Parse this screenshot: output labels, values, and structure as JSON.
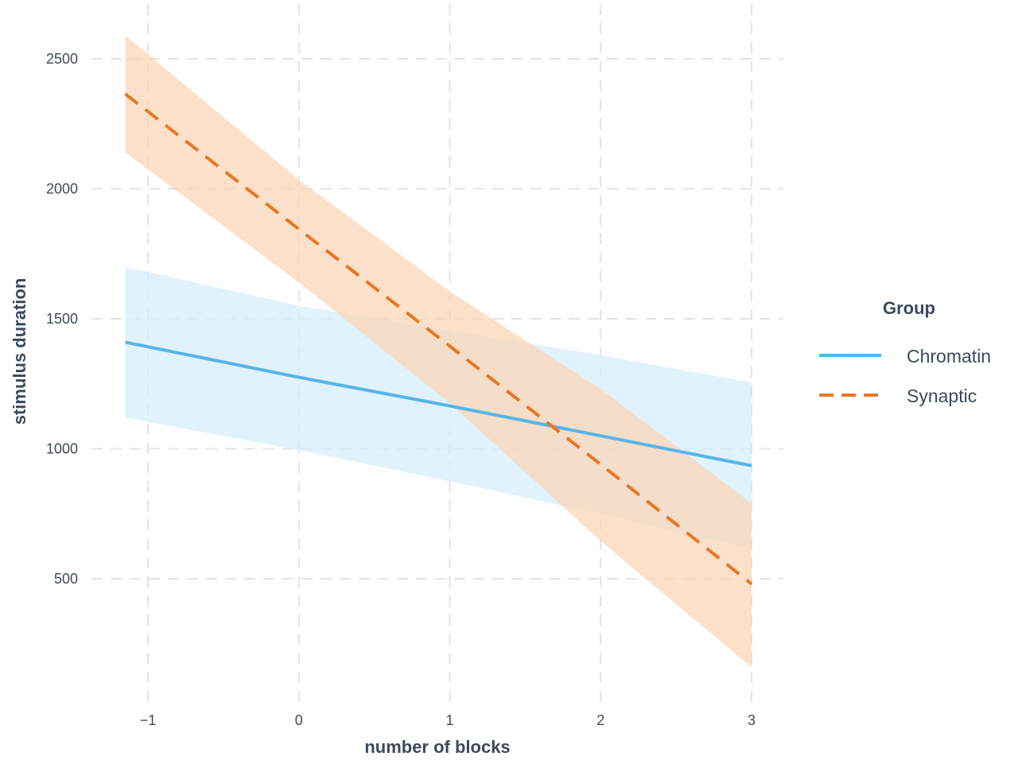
{
  "chart_data": {
    "type": "line",
    "title": "",
    "xlabel": "number of blocks",
    "ylabel": "stimulus duration",
    "xlim": [
      -1.15,
      3.0
    ],
    "ylim": [
      150,
      2600
    ],
    "x_ticks": [
      -1,
      0,
      1,
      2,
      3
    ],
    "x_tick_labels": [
      "−1",
      "0",
      "1",
      "2",
      "3"
    ],
    "y_ticks": [
      500,
      1000,
      1500,
      2000,
      2500
    ],
    "y_tick_labels": [
      "500",
      "1000",
      "1500",
      "2000",
      "2500"
    ],
    "grid": true,
    "legend": {
      "title": "Group",
      "placement": "right"
    },
    "series": [
      {
        "name": "Chromatin",
        "color": "#56b4e9",
        "line_style": "solid",
        "band_color": "#d6edfa",
        "x": [
          -1.15,
          0,
          1,
          2,
          3
        ],
        "y": [
          1410,
          1275,
          1165,
          1050,
          935
        ],
        "lower": [
          1120,
          995,
          875,
          750,
          615
        ],
        "upper": [
          1700,
          1550,
          1455,
          1360,
          1255
        ]
      },
      {
        "name": "Synaptic",
        "color": "#e87722",
        "line_style": "dashed",
        "band_color": "#fbd7b8",
        "x": [
          -1.15,
          0,
          1,
          2,
          3
        ],
        "y": [
          2365,
          1845,
          1395,
          940,
          480
        ],
        "lower": [
          2140,
          1640,
          1175,
          645,
          160
        ],
        "upper": [
          2590,
          2035,
          1605,
          1230,
          790
        ]
      }
    ]
  }
}
